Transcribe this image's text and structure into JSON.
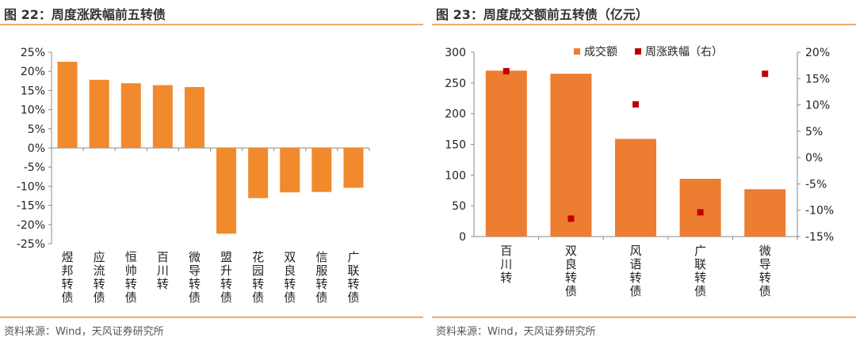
{
  "panels": {
    "left": {
      "title": "图 22：周度涨跌幅前五转债",
      "source": "资料来源：Wind，天风证券研究所"
    },
    "right": {
      "title": "图 23：周度成交额前五转债（亿元）",
      "source": "资料来源：Wind，天风证券研究所"
    }
  },
  "colors": {
    "bar": "#f08a2c",
    "bar2": "#ed7d31",
    "marker": "#c00000",
    "rule": "#f1a868"
  },
  "chart_data": [
    {
      "type": "bar",
      "title": "周度涨跌幅前五转债",
      "categories": [
        "煜邦转债",
        "应流转债",
        "恒帅转债",
        "百川转",
        "微导转债",
        "盟升转债",
        "花园转债",
        "双良转债",
        "信服转债",
        "广联转债"
      ],
      "values": [
        22.5,
        17.8,
        16.9,
        16.4,
        15.9,
        -22.4,
        -13.1,
        -11.6,
        -11.5,
        -10.4
      ],
      "ylim": [
        -25,
        25
      ],
      "yticks": [
        "25%",
        "20%",
        "15%",
        "10%",
        "5%",
        "0%",
        "-5%",
        "-10%",
        "-15%",
        "-20%",
        "-25%"
      ],
      "grid": false,
      "unit": "%"
    },
    {
      "type": "bar",
      "title": "周度成交额前五转债（亿元）",
      "categories": [
        "百川转",
        "双良转债",
        "风语转债",
        "广联转债",
        "微导转债"
      ],
      "series": [
        {
          "name": "成交额",
          "kind": "bar",
          "axis": "left",
          "values": [
            270,
            265,
            159,
            94,
            77
          ]
        },
        {
          "name": "周涨跌幅（右）",
          "kind": "marker",
          "axis": "right",
          "values": [
            16.4,
            -11.6,
            10.1,
            -10.4,
            15.9
          ]
        }
      ],
      "ylim_left": [
        0,
        300
      ],
      "ylim_right": [
        -15,
        20
      ],
      "yticks_left": [
        "300",
        "250",
        "200",
        "150",
        "100",
        "50",
        "0"
      ],
      "yticks_right": [
        "20%",
        "15%",
        "10%",
        "5%",
        "0%",
        "-5%",
        "-10%",
        "-15%"
      ],
      "legend_position": "top",
      "grid": false
    }
  ]
}
